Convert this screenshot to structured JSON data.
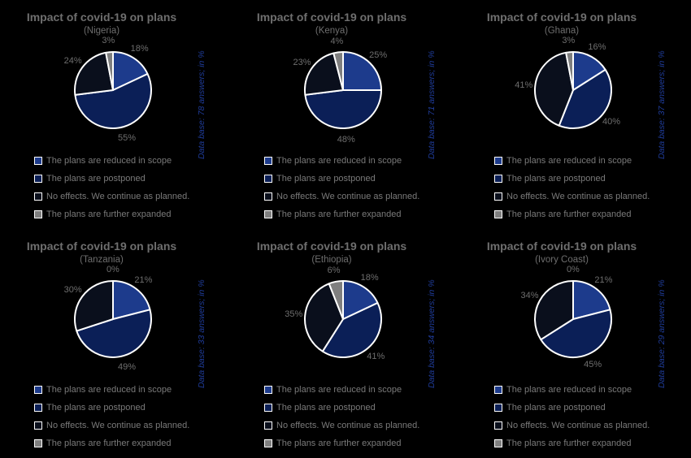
{
  "colors": {
    "reduced": "#1d3b8c",
    "postponed": "#0b1f57",
    "no_effects": "#0a0f1c",
    "expanded": "#7f7f7f",
    "slice_border": "#ffffff",
    "text": "#6e6e6e",
    "database_text": "#1f3c9a"
  },
  "legend_labels": [
    "The plans are reduced in scope",
    "The plans are postponed",
    "No effects. We continue as planned.",
    "The plans are further expanded"
  ],
  "chart_data": [
    {
      "type": "pie",
      "title": "Impact of covid-19 on plans",
      "subtitle": "(Nigeria)",
      "database_note": "Data base: 78 answers; in %",
      "values": [
        18,
        55,
        24,
        3
      ],
      "value_labels": [
        "18%",
        "55%",
        "24%",
        "3%"
      ]
    },
    {
      "type": "pie",
      "title": "Impact of covid-19 on plans",
      "subtitle": "(Kenya)",
      "database_note": "Data base: 71 answers; in %",
      "values": [
        25,
        48,
        23,
        4
      ],
      "value_labels": [
        "25%",
        "48%",
        "23%",
        "4%"
      ]
    },
    {
      "type": "pie",
      "title": "Impact of covid-19 on plans",
      "subtitle": "(Ghana)",
      "database_note": "Data base: 37 answers; in %",
      "values": [
        16,
        40,
        41,
        3
      ],
      "value_labels": [
        "16%",
        "40%",
        "41%",
        "3%"
      ]
    },
    {
      "type": "pie",
      "title": "Impact of covid-19 on plans",
      "subtitle": "(Tanzania)",
      "database_note": "Data base: 33 answers; in %",
      "values": [
        21,
        49,
        30,
        0
      ],
      "value_labels": [
        "21%",
        "49%",
        "30%",
        "0%"
      ]
    },
    {
      "type": "pie",
      "title": "Impact of covid-19 on plans",
      "subtitle": "(Ethiopia)",
      "database_note": "Data base: 34 answers; in %",
      "values": [
        18,
        41,
        35,
        6
      ],
      "value_labels": [
        "18%",
        "41%",
        "35%",
        "6%"
      ]
    },
    {
      "type": "pie",
      "title": "Impact of covid-19 on plans",
      "subtitle": "(Ivory Coast)",
      "database_note": "Data base: 29 answers; in %",
      "values": [
        21,
        45,
        34,
        0
      ],
      "value_labels": [
        "21%",
        "45%",
        "34%",
        "0%"
      ]
    }
  ]
}
